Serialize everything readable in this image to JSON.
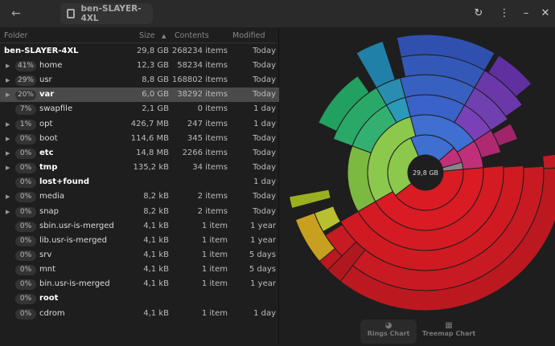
{
  "title": "ben-SLAYER-4XL",
  "header": {
    "folder": "Folder",
    "size": "Size",
    "contents": "Contents",
    "modified": "Modified"
  },
  "root": {
    "name": "ben-SLAYER-4XL",
    "size": "29,8 GB",
    "contents": "268234 items",
    "modified": "Today"
  },
  "rows": [
    {
      "pct": "41%",
      "name": "home",
      "size": "12,3 GB",
      "contents": "58234 items",
      "modified": "Today",
      "expand": true,
      "bold": false
    },
    {
      "pct": "29%",
      "name": "usr",
      "size": "8,8 GB",
      "contents": "168802 items",
      "modified": "Today",
      "expand": true,
      "bold": false
    },
    {
      "pct": "20%",
      "name": "var",
      "size": "6,0 GB",
      "contents": "38292 items",
      "modified": "Today",
      "expand": true,
      "bold": true,
      "selected": true
    },
    {
      "pct": "7%",
      "name": "swapfile",
      "size": "2,1 GB",
      "contents": "0 items",
      "modified": "1 day",
      "expand": false,
      "bold": false
    },
    {
      "pct": "1%",
      "name": "opt",
      "size": "426,7 MB",
      "contents": "247 items",
      "modified": "1 day",
      "expand": true,
      "bold": false
    },
    {
      "pct": "0%",
      "name": "boot",
      "size": "114,6 MB",
      "contents": "345 items",
      "modified": "Today",
      "expand": true,
      "bold": false
    },
    {
      "pct": "0%",
      "name": "etc",
      "size": "14,8 MB",
      "contents": "2266 items",
      "modified": "Today",
      "expand": true,
      "bold": true
    },
    {
      "pct": "0%",
      "name": "tmp",
      "size": "135,2 kB",
      "contents": "34 items",
      "modified": "Today",
      "expand": true,
      "bold": true
    },
    {
      "pct": "0%",
      "name": "lost+found",
      "size": "",
      "contents": "",
      "modified": "1 day",
      "expand": false,
      "bold": true
    },
    {
      "pct": "0%",
      "name": "media",
      "size": "8,2 kB",
      "contents": "2 items",
      "modified": "Today",
      "expand": true,
      "bold": false
    },
    {
      "pct": "0%",
      "name": "snap",
      "size": "8,2 kB",
      "contents": "2 items",
      "modified": "Today",
      "expand": true,
      "bold": false
    },
    {
      "pct": "0%",
      "name": "sbin.usr-is-merged",
      "size": "4,1 kB",
      "contents": "1 item",
      "modified": "1 year",
      "expand": false,
      "bold": false
    },
    {
      "pct": "0%",
      "name": "lib.usr-is-merged",
      "size": "4,1 kB",
      "contents": "1 item",
      "modified": "1 year",
      "expand": false,
      "bold": false
    },
    {
      "pct": "0%",
      "name": "srv",
      "size": "4,1 kB",
      "contents": "1 item",
      "modified": "5 days",
      "expand": false,
      "bold": false
    },
    {
      "pct": "0%",
      "name": "mnt",
      "size": "4,1 kB",
      "contents": "1 item",
      "modified": "5 days",
      "expand": false,
      "bold": false
    },
    {
      "pct": "0%",
      "name": "bin.usr-is-merged",
      "size": "4,1 kB",
      "contents": "1 item",
      "modified": "1 year",
      "expand": false,
      "bold": false
    },
    {
      "pct": "0%",
      "name": "root",
      "size": "",
      "contents": "",
      "modified": "",
      "expand": false,
      "bold": true
    },
    {
      "pct": "0%",
      "name": "cdrom",
      "size": "4,1 kB",
      "contents": "1 item",
      "modified": "1 day",
      "expand": false,
      "bold": false
    }
  ],
  "chart": {
    "center_label": "29,8 GB",
    "colors": {
      "home": "#d91b24",
      "usr": "#8cc84b",
      "var": "#3f6fd0",
      "swapfile": "#c0307a"
    }
  },
  "view_switcher": {
    "rings": "Rings Chart",
    "treemap": "Treemap Chart"
  }
}
